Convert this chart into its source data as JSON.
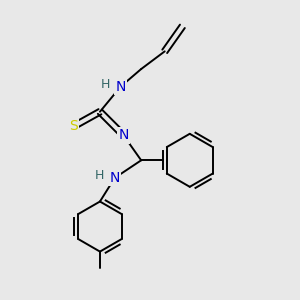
{
  "bg_color": "#e8e8e8",
  "atom_color_N": "#0000cc",
  "atom_color_S": "#cccc00",
  "atom_color_H": "#336666",
  "atom_color_C": "#000000",
  "line_color": "#000000",
  "line_width": 1.4,
  "font_size": 10,
  "fig_size": [
    3.0,
    3.0
  ],
  "dpi": 100,
  "xlim": [
    0,
    10
  ],
  "ylim": [
    0,
    10
  ]
}
